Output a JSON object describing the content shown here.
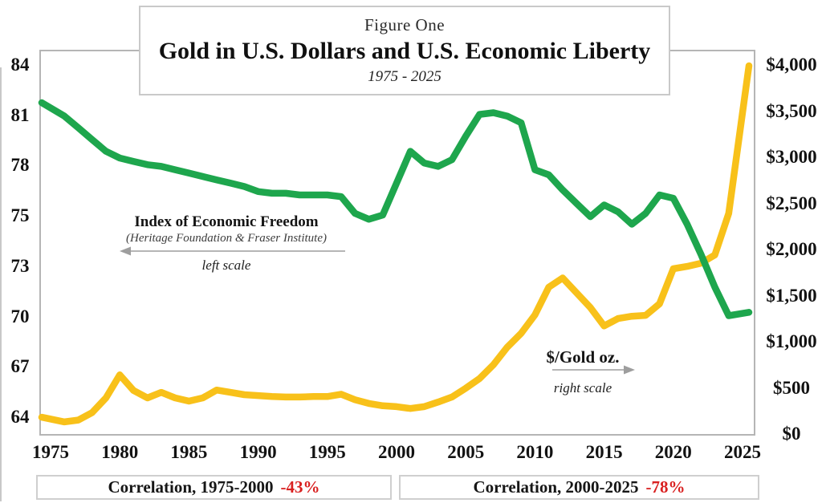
{
  "figure": {
    "kicker": "Figure One",
    "title": "Gold in U.S. Dollars and U.S. Economic Liberty",
    "subtitle": "1975 - 2025"
  },
  "annotations": {
    "freedom": {
      "title": "Index of Economic Freedom",
      "source": "(Heritage Foundation & Fraser Institute)",
      "scale_note": "left scale",
      "arrow_direction": "left"
    },
    "gold": {
      "title": "$/Gold oz.",
      "scale_note": "right scale",
      "arrow_direction": "right"
    }
  },
  "footer": {
    "box1": {
      "label": "Correlation, 1975-2000",
      "value": "-43%"
    },
    "box2": {
      "label": "Correlation, 2000-2025",
      "value": "-78%"
    }
  },
  "colors": {
    "freedom_green": "#1ea64d",
    "gold_yellow": "#f8c11a",
    "correlation_red": "#d92121",
    "plot_border": "#b5b5b5",
    "arrow_gray": "#9e9e9e"
  },
  "chart_data": {
    "type": "line",
    "title": "Gold in U.S. Dollars and U.S. Economic Liberty",
    "subtitle": "1975 - 2025",
    "grid": false,
    "legend_position": "in-plot annotations",
    "x_years": [
      1975,
      1976,
      1977,
      1978,
      1979,
      1980,
      1981,
      1982,
      1983,
      1984,
      1985,
      1986,
      1987,
      1988,
      1989,
      1990,
      1991,
      1992,
      1993,
      1994,
      1995,
      1996,
      1997,
      1998,
      1999,
      2000,
      2001,
      2002,
      2003,
      2004,
      2005,
      2006,
      2007,
      2008,
      2009,
      2010,
      2011,
      2012,
      2013,
      2014,
      2015,
      2016,
      2017,
      2018,
      2019,
      2020,
      2021,
      2022,
      2023,
      2024,
      2025
    ],
    "series": [
      {
        "name": "Index of Economic Freedom",
        "axis": "left",
        "color_key": "freedom_green",
        "values": [
          81.8,
          81.0,
          80.3,
          79.6,
          78.9,
          78.5,
          78.3,
          78.1,
          78.0,
          77.8,
          77.6,
          77.4,
          77.2,
          77.0,
          76.8,
          76.5,
          76.4,
          76.4,
          76.3,
          76.3,
          76.3,
          76.2,
          75.2,
          74.9,
          75.1,
          77.0,
          78.9,
          78.2,
          78.0,
          78.4,
          79.8,
          81.1,
          81.2,
          81.0,
          80.6,
          77.8,
          77.5,
          76.6,
          75.8,
          75.0,
          75.7,
          75.3,
          74.7,
          75.2,
          76.3,
          76.1,
          74.7,
          73.5,
          71.8,
          70.1,
          70.3
        ]
      },
      {
        "name": "$/Gold oz.",
        "axis": "right",
        "color_key": "gold_yellow",
        "values": [
          190,
          140,
          160,
          240,
          400,
          650,
          480,
          400,
          460,
          400,
          365,
          400,
          485,
          460,
          435,
          425,
          415,
          410,
          410,
          415,
          415,
          440,
          380,
          340,
          315,
          305,
          285,
          305,
          355,
          410,
          505,
          610,
          760,
          950,
          1100,
          1300,
          1600,
          1700,
          1540,
          1380,
          1180,
          1260,
          1285,
          1295,
          1420,
          1800,
          1825,
          1860,
          1950,
          2400,
          4000
        ]
      }
    ],
    "left_axis": {
      "ticks": [
        "84",
        "81",
        "78",
        "75",
        "73",
        "70",
        "67",
        "64"
      ],
      "printed_spacing": "even"
    },
    "right_axis": {
      "ticks": [
        "$4,000",
        "$3,500",
        "$3,000",
        "$2,500",
        "$2,000",
        "$1,500",
        "$1,000",
        "$500",
        "$0"
      ],
      "range": [
        0,
        4000
      ]
    },
    "x_axis": {
      "ticks": [
        "1975",
        "1980",
        "1985",
        "1990",
        "1995",
        "2000",
        "2005",
        "2010",
        "2015",
        "2020",
        "2025"
      ]
    }
  }
}
